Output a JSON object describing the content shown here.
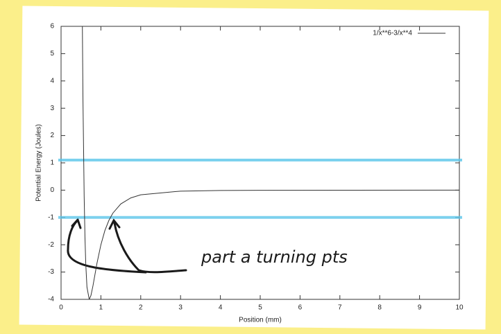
{
  "chart_data": {
    "type": "line",
    "x_label": "Position (mm)",
    "y_label": "Potential Energy (Joules)",
    "x": [
      0.535,
      0.55,
      0.58,
      0.6,
      0.62,
      0.65,
      0.707,
      0.75,
      0.8,
      0.9,
      1,
      1.1,
      1.2,
      1.3,
      1.5,
      1.75,
      2,
      3,
      4,
      5,
      7,
      10
    ],
    "series": [
      {
        "name": "1/x**6-3/x**4",
        "color": "#333333",
        "values": [
          6.0,
          3.3,
          -0.23,
          -1.72,
          -2.7,
          -3.55,
          -4.0,
          -3.86,
          -3.51,
          -2.69,
          -2.0,
          -1.48,
          -1.11,
          -0.843,
          -0.505,
          -0.285,
          -0.172,
          -0.036,
          -0.0115,
          -0.0048,
          -0.00125,
          -0.0003
        ]
      }
    ],
    "hlines": [
      {
        "value": 1.1,
        "color": "#5cc6ea"
      },
      {
        "value": -1,
        "color": "#5cc6ea"
      }
    ],
    "annotation": "part a turning pts",
    "xlim": [
      0,
      10
    ],
    "ylim": [
      -4,
      6
    ],
    "xticks": [
      0,
      1,
      2,
      3,
      4,
      5,
      6,
      7,
      8,
      9,
      10
    ],
    "yticks": [
      -4,
      -3,
      -2,
      -1,
      0,
      1,
      2,
      3,
      4,
      5,
      6
    ],
    "legend": "upper right",
    "grid": false
  }
}
